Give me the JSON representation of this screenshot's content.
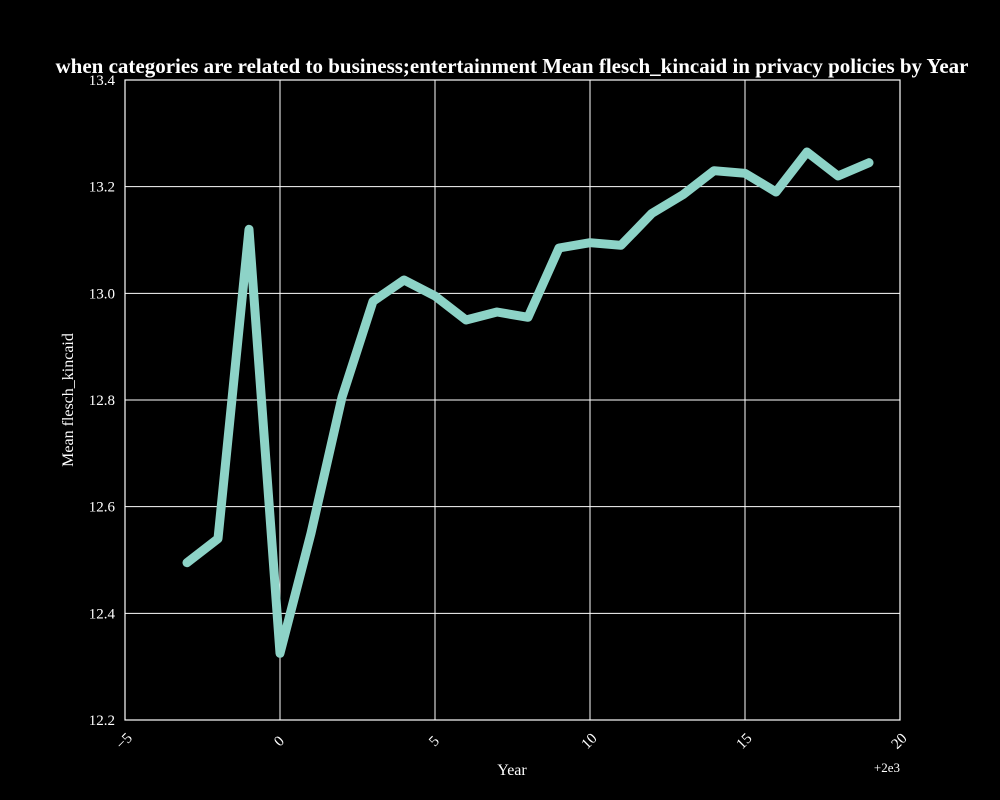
{
  "chart_data": {
    "type": "line",
    "title": "when categories are related to business;entertainment Mean flesch_kincaid in privacy policies by Year",
    "xlabel": "Year",
    "ylabel": "Mean flesch_kincaid",
    "x_offset_label": "+2e3",
    "xlim": [
      -5,
      20
    ],
    "ylim": [
      12.2,
      13.4
    ],
    "x_ticks": [
      -5,
      0,
      5,
      10,
      15,
      20
    ],
    "x_tick_labels": [
      "−5",
      "0",
      "5",
      "10",
      "15",
      "20"
    ],
    "y_ticks": [
      12.2,
      12.4,
      12.6,
      12.8,
      13.0,
      13.2,
      13.4
    ],
    "y_tick_labels": [
      "12.2",
      "12.4",
      "12.6",
      "12.8",
      "13.0",
      "13.2",
      "13.4"
    ],
    "grid": true,
    "series": [
      {
        "color": "#8dd3c7",
        "x": [
          -3,
          -2,
          -1,
          0,
          1,
          2,
          3,
          4,
          5,
          6,
          7,
          8,
          9,
          10,
          11,
          12,
          13,
          14,
          15,
          16,
          17,
          18,
          19
        ],
        "y": [
          12.495,
          12.54,
          13.12,
          12.325,
          12.55,
          12.805,
          12.985,
          13.025,
          12.995,
          12.95,
          12.965,
          12.955,
          13.085,
          13.095,
          13.09,
          13.15,
          13.185,
          13.23,
          13.225,
          13.19,
          13.265,
          13.22,
          13.245
        ]
      }
    ]
  }
}
